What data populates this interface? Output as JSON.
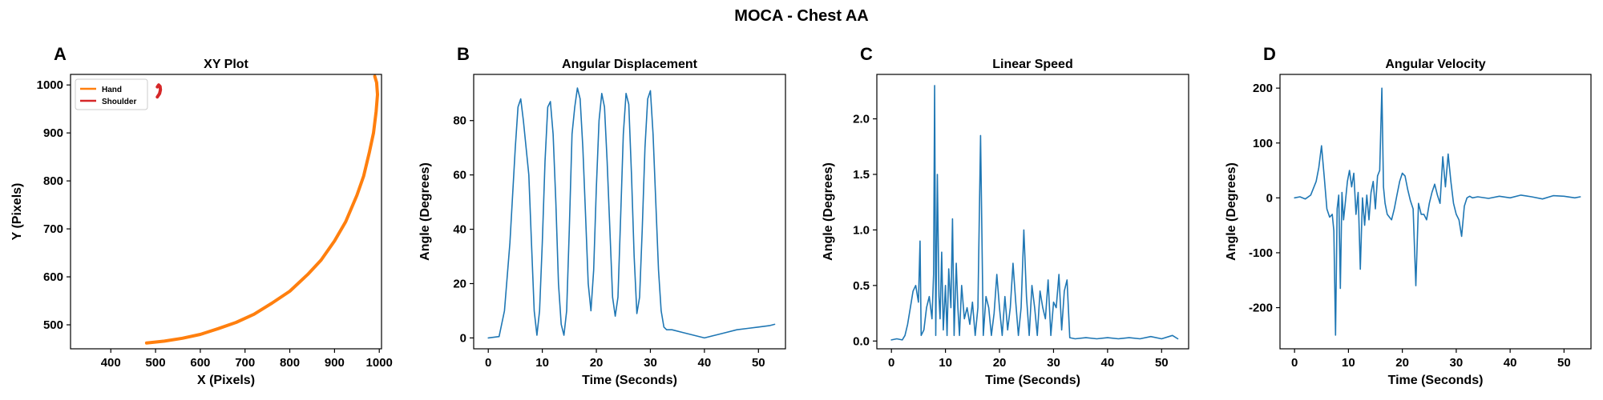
{
  "title": "MOCA - Chest AA",
  "colors": {
    "hand": "#ff7f0e",
    "shoulder": "#d62728",
    "series": "#1f77b4"
  },
  "chart_data": [
    {
      "panel": "A",
      "type": "line",
      "title": "XY Plot",
      "xlabel": "X (Pixels)",
      "ylabel": "Y (Pixels)",
      "xlim": [
        310,
        1005
      ],
      "ylim": [
        450,
        1022
      ],
      "xticks": [
        400,
        500,
        600,
        700,
        800,
        900,
        1000
      ],
      "yticks": [
        500,
        600,
        700,
        800,
        900,
        1000
      ],
      "legend": {
        "placement": "upper-left",
        "entries": [
          "Hand",
          "Shoulder"
        ]
      },
      "series": [
        {
          "name": "Hand",
          "color": "#ff7f0e",
          "x": [
            480,
            520,
            560,
            600,
            640,
            680,
            720,
            760,
            800,
            840,
            870,
            900,
            925,
            950,
            965,
            978,
            987,
            993,
            996,
            994,
            990
          ],
          "y": [
            462,
            466,
            472,
            480,
            492,
            505,
            522,
            545,
            570,
            605,
            635,
            675,
            715,
            770,
            810,
            860,
            900,
            945,
            980,
            1005,
            1018
          ]
        },
        {
          "name": "Shoulder",
          "color": "#d62728",
          "x": [
            504,
            509,
            511,
            510,
            507,
            504
          ],
          "y": [
            975,
            982,
            990,
            997,
            1000,
            996
          ]
        }
      ]
    },
    {
      "panel": "B",
      "type": "line",
      "title": "Angular Displacement",
      "xlabel": "Time (Seconds)",
      "ylabel": "Angle (Degrees)",
      "xlim": [
        -2.7,
        55
      ],
      "ylim": [
        -4,
        97
      ],
      "xticks": [
        0,
        10,
        20,
        30,
        40,
        50
      ],
      "yticks": [
        0,
        20,
        40,
        60,
        80
      ],
      "series": [
        {
          "color": "#1f77b4",
          "x": [
            0,
            2,
            3,
            4,
            5,
            5.5,
            6,
            6.5,
            7,
            7.5,
            8,
            8.5,
            9,
            9.5,
            10,
            10.5,
            11,
            11.5,
            12,
            12.5,
            13,
            13.5,
            14,
            14.5,
            15,
            15.5,
            16,
            16.5,
            17,
            17.5,
            18,
            18.5,
            19,
            19.5,
            20,
            20.5,
            21,
            21.5,
            22,
            22.5,
            23,
            23.5,
            24,
            24.5,
            25,
            25.5,
            26,
            26.5,
            27,
            27.5,
            28,
            28.5,
            29,
            29.5,
            30,
            30.5,
            31,
            31.5,
            32,
            32.5,
            33,
            34,
            36,
            38,
            40,
            42,
            44,
            46,
            48,
            50,
            52,
            53
          ],
          "y": [
            0,
            0.5,
            10,
            35,
            70,
            85,
            88,
            80,
            70,
            60,
            35,
            10,
            1,
            10,
            35,
            65,
            85,
            87,
            75,
            50,
            20,
            5,
            1,
            10,
            40,
            75,
            85,
            92,
            88,
            70,
            45,
            20,
            10,
            25,
            55,
            80,
            90,
            85,
            65,
            40,
            15,
            8,
            15,
            45,
            75,
            90,
            86,
            60,
            30,
            9,
            15,
            40,
            70,
            88,
            91,
            75,
            50,
            25,
            10,
            4,
            3,
            3,
            2,
            1,
            0,
            1,
            2,
            3,
            3.5,
            4,
            4.5,
            5
          ]
        }
      ]
    },
    {
      "panel": "C",
      "type": "line",
      "title": "Linear Speed",
      "xlabel": "Time (Seconds)",
      "ylabel": "Angle (Degrees)",
      "xlim": [
        -2.7,
        55
      ],
      "ylim": [
        -0.07,
        2.4
      ],
      "xticks": [
        0,
        10,
        20,
        30,
        40,
        50
      ],
      "yticks": [
        0.0,
        0.5,
        1.0,
        1.5,
        2.0
      ],
      "tick_labels_y": [
        "0.0",
        "0.5",
        "1.0",
        "1.5",
        "2.0"
      ],
      "series": [
        {
          "color": "#1f77b4",
          "x": [
            0,
            1,
            2,
            2.5,
            3,
            3.5,
            4,
            4.5,
            5,
            5.3,
            5.5,
            6,
            6.5,
            7,
            7.5,
            7.8,
            8,
            8.2,
            8.5,
            8.8,
            9,
            9.3,
            9.6,
            10,
            10.3,
            10.6,
            11,
            11.3,
            11.6,
            12,
            12.3,
            12.6,
            13,
            13.5,
            14,
            14.5,
            15,
            15.5,
            16,
            16.5,
            17,
            17.5,
            18,
            18.5,
            19,
            19.5,
            20,
            20.5,
            21,
            21.5,
            22,
            22.5,
            23,
            23.5,
            24,
            24.5,
            25,
            25.5,
            26,
            26.5,
            27,
            27.5,
            28,
            28.5,
            29,
            29.5,
            30,
            30.5,
            31,
            31.5,
            32,
            32.5,
            33,
            34,
            36,
            38,
            40,
            42,
            44,
            46,
            48,
            50,
            52,
            53
          ],
          "y": [
            0.01,
            0.02,
            0.01,
            0.05,
            0.15,
            0.3,
            0.45,
            0.5,
            0.35,
            0.9,
            0.05,
            0.1,
            0.3,
            0.4,
            0.2,
            0.6,
            2.3,
            0.05,
            1.5,
            0.4,
            0.2,
            0.8,
            0.1,
            0.5,
            0.05,
            0.65,
            0.3,
            1.1,
            0.05,
            0.7,
            0.3,
            0.05,
            0.5,
            0.2,
            0.3,
            0.15,
            0.35,
            0.05,
            0.3,
            1.85,
            0.05,
            0.4,
            0.3,
            0.05,
            0.25,
            0.6,
            0.3,
            0.05,
            0.4,
            0.1,
            0.3,
            0.7,
            0.35,
            0.05,
            0.3,
            1.0,
            0.4,
            0.05,
            0.5,
            0.3,
            0.05,
            0.45,
            0.3,
            0.2,
            0.55,
            0.05,
            0.35,
            0.3,
            0.6,
            0.1,
            0.45,
            0.55,
            0.03,
            0.02,
            0.03,
            0.02,
            0.03,
            0.02,
            0.03,
            0.02,
            0.04,
            0.02,
            0.05,
            0.02
          ]
        }
      ]
    },
    {
      "panel": "D",
      "type": "line",
      "title": "Angular Velocity",
      "xlabel": "Time (Seconds)",
      "ylabel": "Angle (Degrees)",
      "xlim": [
        -2.7,
        55
      ],
      "ylim": [
        -275,
        225
      ],
      "xticks": [
        0,
        10,
        20,
        30,
        40,
        50
      ],
      "yticks": [
        -200,
        -100,
        0,
        100,
        200
      ],
      "series": [
        {
          "color": "#1f77b4",
          "x": [
            0,
            1,
            2,
            3,
            4,
            4.5,
            5,
            5.5,
            6,
            6.5,
            7,
            7.3,
            7.6,
            7.9,
            8.2,
            8.5,
            8.8,
            9.1,
            9.4,
            9.8,
            10.2,
            10.6,
            11,
            11.4,
            11.8,
            12.2,
            12.6,
            13,
            13.4,
            13.8,
            14.2,
            14.6,
            15,
            15.4,
            15.8,
            16.2,
            16.5,
            16.8,
            17.2,
            17.6,
            18,
            18.5,
            19,
            19.5,
            20,
            20.5,
            21,
            21.5,
            22,
            22.5,
            23,
            23.5,
            24,
            24.5,
            25,
            25.5,
            26,
            26.5,
            27,
            27.5,
            28,
            28.5,
            29,
            29.5,
            30,
            30.5,
            31,
            31.5,
            32,
            32.5,
            33,
            34,
            36,
            38,
            40,
            42,
            44,
            46,
            48,
            50,
            52,
            53
          ],
          "y": [
            0,
            2,
            -2,
            5,
            30,
            55,
            95,
            40,
            -20,
            -35,
            -30,
            -60,
            -250,
            -20,
            5,
            -165,
            10,
            -40,
            -10,
            30,
            50,
            20,
            45,
            -30,
            10,
            -130,
            0,
            -50,
            5,
            -40,
            10,
            30,
            -20,
            40,
            50,
            200,
            20,
            -10,
            -30,
            -35,
            -40,
            -20,
            5,
            30,
            45,
            40,
            15,
            -5,
            -20,
            -160,
            -10,
            -30,
            -30,
            -40,
            -10,
            10,
            25,
            5,
            -10,
            75,
            20,
            80,
            30,
            -10,
            -30,
            -40,
            -70,
            -15,
            0,
            3,
            0,
            2,
            -1,
            3,
            0,
            5,
            2,
            -2,
            4,
            3,
            0,
            2
          ]
        }
      ]
    }
  ]
}
